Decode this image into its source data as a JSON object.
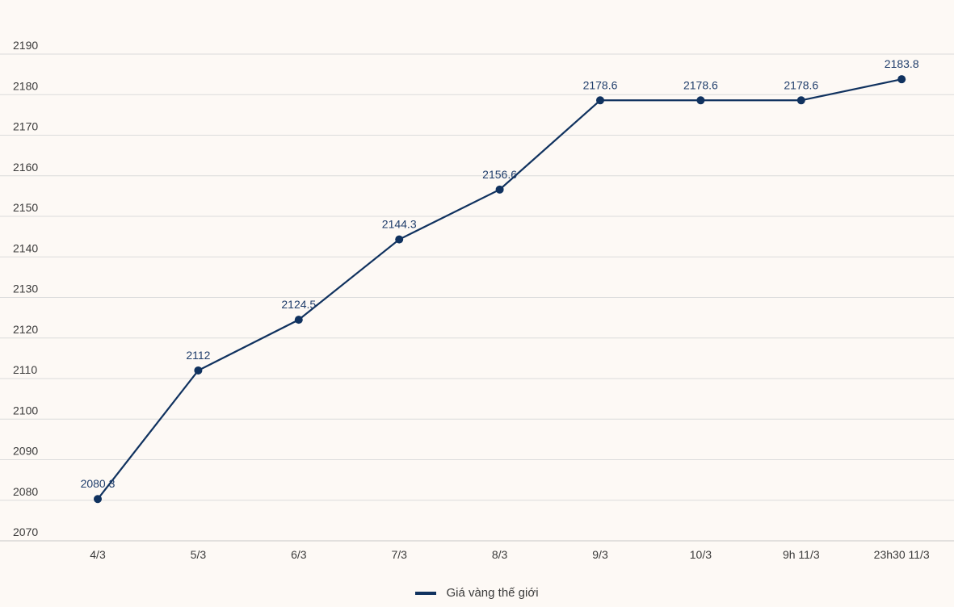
{
  "chart_data": {
    "type": "line",
    "title": "",
    "xlabel": "",
    "ylabel": "",
    "categories": [
      "4/3",
      "5/3",
      "6/3",
      "7/3",
      "8/3",
      "9/3",
      "10/3",
      "9h 11/3",
      "23h30 11/3"
    ],
    "series": [
      {
        "name": "Giá vàng thế giới",
        "values": [
          2080.3,
          2112,
          2124.5,
          2144.3,
          2156.6,
          2178.6,
          2178.6,
          2178.6,
          2183.8
        ],
        "labels": [
          "2080.3",
          "2112",
          "2124.5",
          "2144.3",
          "2156.6",
          "2178.6",
          "2178.6",
          "2178.6",
          "2183.8"
        ],
        "color": "#10325f"
      }
    ],
    "yticks": [
      "2070",
      "2080",
      "2090",
      "2100",
      "2110",
      "2120",
      "2130",
      "2140",
      "2150",
      "2160",
      "2170",
      "2180",
      "2190"
    ],
    "ylim": [
      2070,
      2190
    ],
    "grid": true,
    "legend_position": "bottom-center"
  }
}
